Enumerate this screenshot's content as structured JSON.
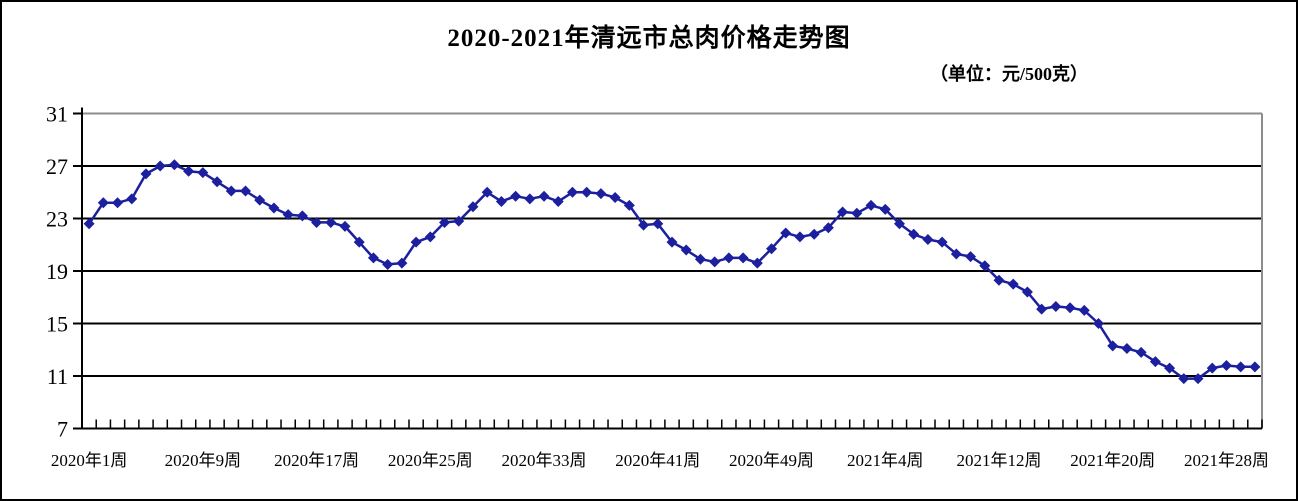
{
  "title": "2020-2021年清远市总肉价格走势图",
  "subtitle": "（单位：元/500克）",
  "chart_data": {
    "type": "line",
    "title": "2020-2021年清远市总肉价格走势图",
    "unit_label": "（单位：元/500克）",
    "n_points": 83,
    "x_tick_labels": [
      "2020年1周",
      "2020年9周",
      "2020年17周",
      "2020年25周",
      "2020年33周",
      "2020年41周",
      "2020年49周",
      "2021年4周",
      "2021年12周",
      "2021年20周",
      "2021年28周"
    ],
    "x_label_every": 8,
    "values": [
      22.6,
      24.2,
      24.2,
      24.5,
      26.4,
      27.0,
      27.1,
      26.6,
      26.5,
      25.8,
      25.1,
      25.1,
      24.4,
      23.8,
      23.3,
      23.2,
      22.7,
      22.7,
      22.4,
      21.2,
      20.0,
      19.5,
      19.6,
      21.2,
      21.6,
      22.7,
      22.8,
      23.9,
      25.0,
      24.3,
      24.7,
      24.5,
      24.7,
      24.3,
      25.0,
      25.0,
      24.9,
      24.6,
      24.0,
      22.5,
      22.6,
      21.2,
      20.6,
      19.9,
      19.7,
      20.0,
      20.0,
      19.6,
      20.7,
      21.9,
      21.6,
      21.8,
      22.3,
      23.5,
      23.4,
      24.0,
      23.7,
      22.6,
      21.8,
      21.4,
      21.2,
      20.3,
      20.1,
      19.4,
      18.3,
      18.0,
      17.4,
      16.1,
      16.3,
      16.2,
      16.0,
      15.0,
      13.3,
      13.1,
      12.8,
      12.1,
      11.6,
      10.8,
      10.8,
      11.6,
      11.8,
      11.7,
      11.7
    ],
    "y_ticks": [
      31,
      27,
      23,
      19,
      15,
      11,
      7
    ],
    "ylim": [
      7,
      31
    ],
    "grid": "horizontal",
    "legend": "none",
    "marker": "diamond",
    "line_color": "#1c1f9e",
    "axis_color": "#000000",
    "plot_border_gray": "#8c8c8c"
  }
}
